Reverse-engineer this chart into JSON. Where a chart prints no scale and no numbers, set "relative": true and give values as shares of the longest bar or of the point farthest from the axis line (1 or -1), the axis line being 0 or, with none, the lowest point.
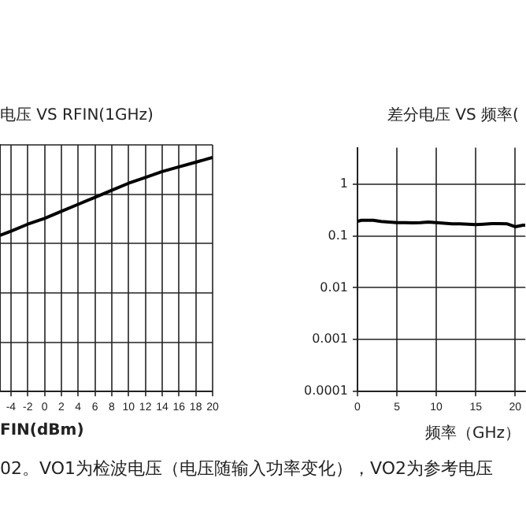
{
  "chart_data": [
    {
      "type": "line",
      "title": "电压 VS RFIN(1GHz)",
      "xlabel": "FIN(dBm)",
      "relative": true,
      "color": "#000000",
      "grid": true,
      "x": [
        -5.3,
        -4,
        -2,
        0,
        2,
        4,
        6,
        8,
        10,
        12,
        14,
        16,
        18,
        20
      ],
      "values": [
        0.667,
        0.685,
        0.715,
        0.74,
        0.77,
        0.8,
        0.83,
        0.86,
        0.89,
        0.915,
        0.94,
        0.96,
        0.98,
        1
      ],
      "xlim": [
        -5.3,
        20
      ],
      "xticks": [
        -4,
        -2,
        0,
        2,
        4,
        6,
        8,
        10,
        12,
        14,
        16,
        18,
        20
      ],
      "annotations": [
        "02。VO1为检波电压（电压随输入功率变化），VO2为参考电压"
      ]
    },
    {
      "type": "line",
      "title": "差分电压 VS 频率(",
      "xlabel": "频率（GHz）",
      "log": "y",
      "color": "#000000",
      "grid": true,
      "x": [
        0,
        0.5,
        1,
        2,
        3,
        4,
        5,
        6,
        7,
        8,
        9,
        10,
        11,
        12,
        13,
        14,
        15,
        16,
        17,
        18,
        19,
        20,
        21,
        21.3
      ],
      "values": [
        0.19,
        0.2,
        0.2,
        0.2,
        0.19,
        0.185,
        0.18,
        0.18,
        0.178,
        0.18,
        0.185,
        0.18,
        0.175,
        0.17,
        0.17,
        0.168,
        0.165,
        0.168,
        0.172,
        0.172,
        0.17,
        0.15,
        0.16,
        0.16
      ],
      "xlim": [
        0,
        21.3
      ],
      "xticks": [
        0,
        5,
        10,
        15,
        20
      ],
      "ylim": [
        0.0001,
        5
      ],
      "yticks": [
        0.0001,
        0.001,
        0.01,
        0.1,
        1
      ]
    }
  ]
}
